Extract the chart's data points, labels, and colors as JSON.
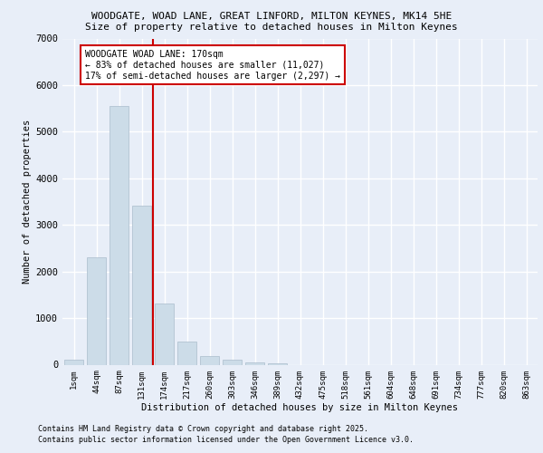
{
  "title1": "WOODGATE, WOAD LANE, GREAT LINFORD, MILTON KEYNES, MK14 5HE",
  "title2": "Size of property relative to detached houses in Milton Keynes",
  "xlabel": "Distribution of detached houses by size in Milton Keynes",
  "ylabel": "Number of detached properties",
  "categories": [
    "1sqm",
    "44sqm",
    "87sqm",
    "131sqm",
    "174sqm",
    "217sqm",
    "260sqm",
    "303sqm",
    "346sqm",
    "389sqm",
    "432sqm",
    "475sqm",
    "518sqm",
    "561sqm",
    "604sqm",
    "648sqm",
    "691sqm",
    "734sqm",
    "777sqm",
    "820sqm",
    "863sqm"
  ],
  "values": [
    100,
    2300,
    5550,
    3420,
    1320,
    500,
    185,
    100,
    55,
    30,
    0,
    0,
    0,
    0,
    0,
    0,
    0,
    0,
    0,
    0,
    0
  ],
  "bar_color": "#ccdce8",
  "bar_edge_color": "#aabccc",
  "vline_color": "#cc0000",
  "annotation_text": "WOODGATE WOAD LANE: 170sqm\n← 83% of detached houses are smaller (11,027)\n17% of semi-detached houses are larger (2,297) →",
  "annotation_box_color": "#cc0000",
  "background_color": "#e8eef8",
  "grid_color": "#ffffff",
  "ylim": [
    0,
    7000
  ],
  "yticks": [
    0,
    1000,
    2000,
    3000,
    4000,
    5000,
    6000,
    7000
  ],
  "footnote1": "Contains HM Land Registry data © Crown copyright and database right 2025.",
  "footnote2": "Contains public sector information licensed under the Open Government Licence v3.0."
}
